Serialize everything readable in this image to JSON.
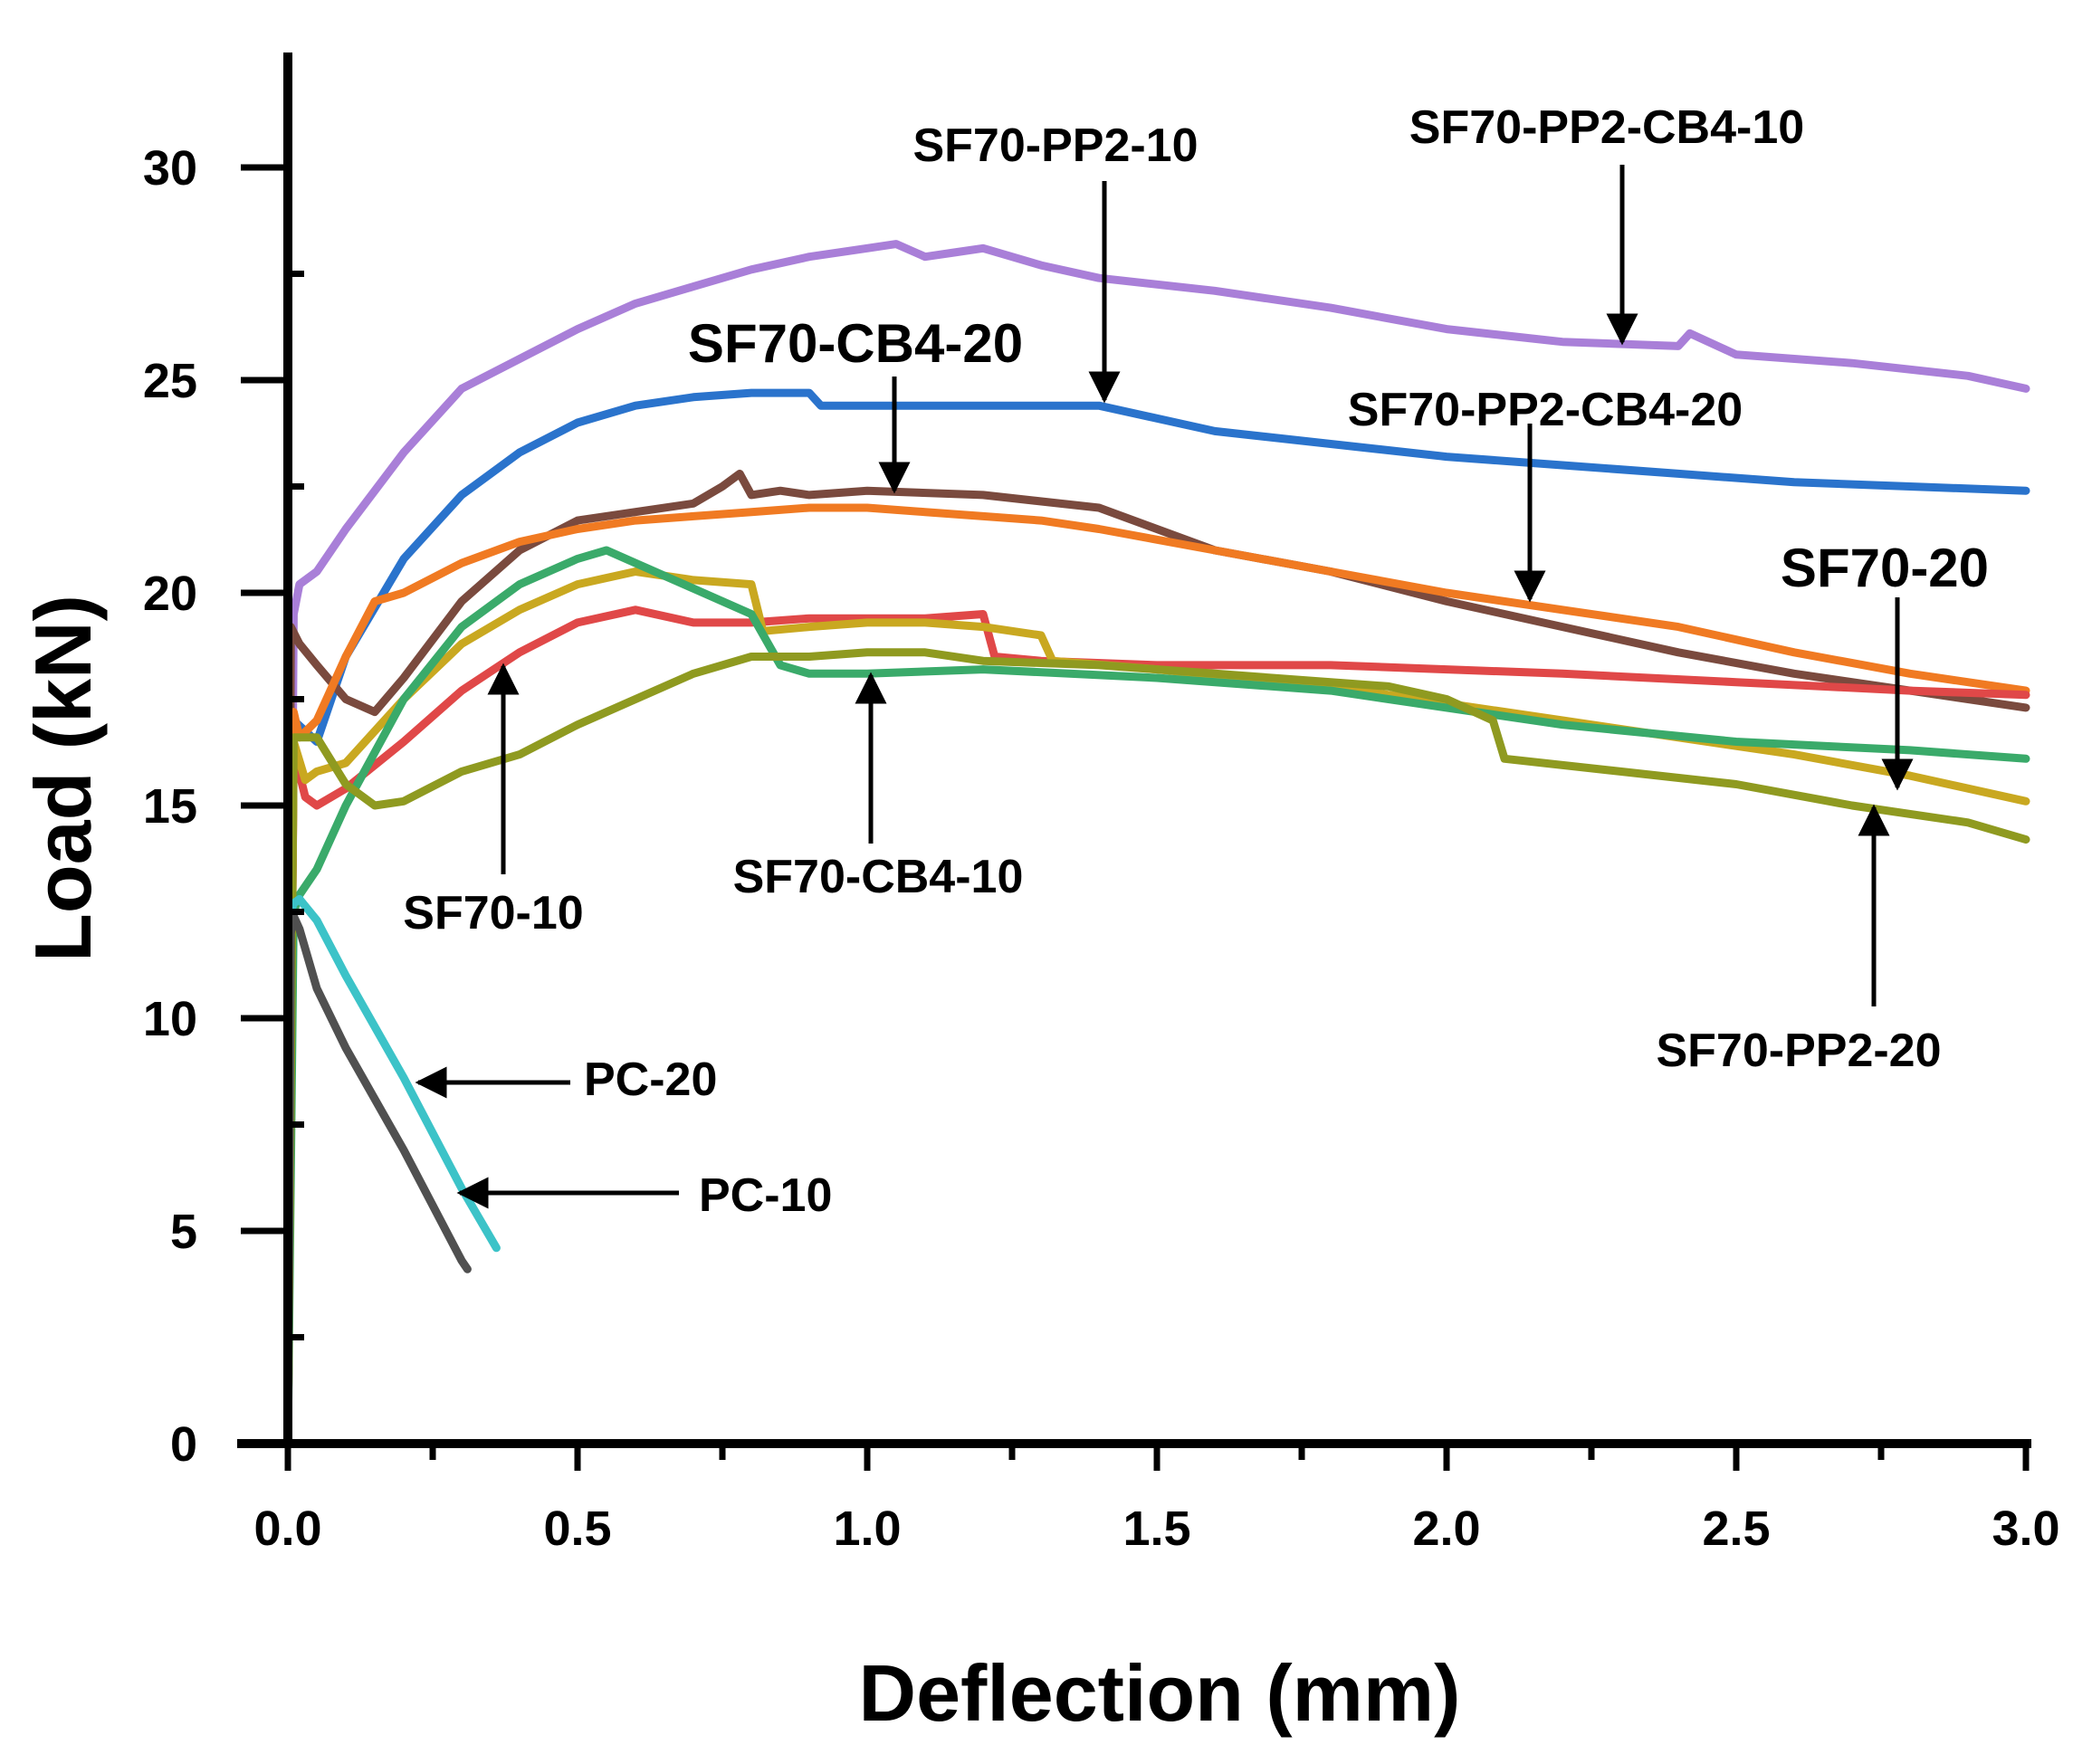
{
  "chart_data": {
    "type": "line",
    "title": "",
    "xlabel": "Deflection (mm)",
    "ylabel": "Load (kN)",
    "xlim": [
      0,
      3.0
    ],
    "ylim": [
      0,
      32
    ],
    "grid": false,
    "x_ticks": [
      "0.0",
      "0.5",
      "1.0",
      "1.5",
      "2.0",
      "2.5",
      "3.0"
    ],
    "y_ticks": [
      "0",
      "5",
      "10",
      "15",
      "20",
      "25",
      "30"
    ],
    "series": [
      {
        "name": "SF70-PP2-CB4-10",
        "color": "#a97fd8",
        "x": [
          0,
          0.01,
          0.02,
          0.05,
          0.1,
          0.2,
          0.3,
          0.4,
          0.5,
          0.6,
          0.7,
          0.8,
          0.9,
          1.0,
          1.05,
          1.1,
          1.15,
          1.2,
          1.3,
          1.4,
          1.6,
          1.8,
          2.0,
          2.2,
          2.4,
          2.42,
          2.5,
          2.7,
          2.9,
          3.0
        ],
        "y": [
          0,
          19.5,
          20.2,
          20.5,
          21.5,
          23.3,
          24.8,
          25.5,
          26.2,
          26.8,
          27.2,
          27.6,
          27.9,
          28.1,
          28.2,
          27.9,
          28.0,
          28.1,
          27.7,
          27.4,
          27.1,
          26.7,
          26.2,
          25.9,
          25.8,
          26.1,
          25.6,
          25.4,
          25.1,
          24.8
        ]
      },
      {
        "name": "SF70-PP2-10",
        "color": "#2a73cc",
        "x": [
          0,
          0.01,
          0.05,
          0.1,
          0.2,
          0.3,
          0.4,
          0.5,
          0.6,
          0.7,
          0.8,
          0.9,
          0.92,
          1.0,
          1.2,
          1.4,
          1.6,
          1.8,
          2.0,
          2.2,
          2.4,
          2.6,
          2.8,
          3.0
        ],
        "y": [
          0,
          17.0,
          16.5,
          18.5,
          20.8,
          22.3,
          23.3,
          24.0,
          24.4,
          24.6,
          24.7,
          24.7,
          24.4,
          24.4,
          24.4,
          24.4,
          23.8,
          23.5,
          23.2,
          23.0,
          22.8,
          22.6,
          22.5,
          22.4
        ]
      },
      {
        "name": "SF70-CB4-20",
        "color": "#7a4a3e",
        "x": [
          0,
          0.005,
          0.02,
          0.05,
          0.1,
          0.15,
          0.2,
          0.3,
          0.4,
          0.5,
          0.6,
          0.7,
          0.75,
          0.78,
          0.8,
          0.85,
          0.9,
          1.0,
          1.2,
          1.4,
          1.6,
          1.8,
          2.0,
          2.2,
          2.4,
          2.6,
          2.8,
          3.0
        ],
        "y": [
          0,
          19.2,
          18.8,
          18.3,
          17.5,
          17.2,
          18.0,
          19.8,
          21.0,
          21.7,
          21.9,
          22.1,
          22.5,
          22.8,
          22.3,
          22.4,
          22.3,
          22.4,
          22.3,
          22.0,
          21.0,
          20.5,
          19.8,
          19.2,
          18.6,
          18.1,
          17.7,
          17.3
        ]
      },
      {
        "name": "SF70-PP2-CB4-20",
        "color": "#f07a22",
        "x": [
          0,
          0.01,
          0.02,
          0.05,
          0.1,
          0.15,
          0.2,
          0.3,
          0.4,
          0.5,
          0.6,
          0.7,
          0.8,
          0.9,
          1.0,
          1.1,
          1.2,
          1.3,
          1.4,
          1.6,
          1.8,
          2.0,
          2.2,
          2.4,
          2.6,
          2.8,
          3.0
        ],
        "y": [
          0,
          17.2,
          16.6,
          17.0,
          18.5,
          19.8,
          20.0,
          20.7,
          21.2,
          21.5,
          21.7,
          21.8,
          21.9,
          22.0,
          22.0,
          21.9,
          21.8,
          21.7,
          21.5,
          21.0,
          20.5,
          20.0,
          19.6,
          19.2,
          18.6,
          18.1,
          17.7
        ]
      },
      {
        "name": "SF70-10",
        "color": "#e04848",
        "x": [
          0,
          0.01,
          0.03,
          0.05,
          0.1,
          0.2,
          0.3,
          0.4,
          0.5,
          0.6,
          0.7,
          0.8,
          0.9,
          1.0,
          1.1,
          1.2,
          1.22,
          1.3,
          1.5,
          1.8,
          2.0,
          2.2,
          2.5,
          2.8,
          3.0
        ],
        "y": [
          0,
          16.3,
          15.2,
          15.0,
          15.4,
          16.5,
          17.7,
          18.6,
          19.3,
          19.6,
          19.3,
          19.3,
          19.4,
          19.4,
          19.4,
          19.5,
          18.5,
          18.4,
          18.3,
          18.3,
          18.2,
          18.1,
          17.9,
          17.7,
          17.6
        ]
      },
      {
        "name": "SF70-20",
        "color": "#c9a820",
        "x": [
          0,
          0.01,
          0.03,
          0.05,
          0.1,
          0.2,
          0.3,
          0.4,
          0.5,
          0.6,
          0.7,
          0.8,
          0.82,
          0.9,
          1.0,
          1.1,
          1.2,
          1.3,
          1.32,
          1.5,
          1.8,
          2.0,
          2.2,
          2.4,
          2.6,
          2.8,
          3.0
        ],
        "y": [
          0,
          16.5,
          15.6,
          15.8,
          16.0,
          17.5,
          18.8,
          19.6,
          20.2,
          20.5,
          20.3,
          20.2,
          19.1,
          19.2,
          19.3,
          19.3,
          19.2,
          19.0,
          18.4,
          18.2,
          17.8,
          17.4,
          17.0,
          16.6,
          16.2,
          15.7,
          15.1
        ]
      },
      {
        "name": "SF70-CB4-10",
        "color": "#3aaa6a",
        "x": [
          0,
          0.01,
          0.02,
          0.05,
          0.1,
          0.2,
          0.3,
          0.4,
          0.5,
          0.55,
          0.6,
          0.7,
          0.8,
          0.85,
          0.9,
          1.0,
          1.2,
          1.5,
          1.8,
          2.0,
          2.2,
          2.5,
          2.8,
          3.0
        ],
        "y": [
          0,
          12.5,
          12.9,
          13.5,
          15.0,
          17.5,
          19.2,
          20.2,
          20.8,
          21.0,
          20.7,
          20.1,
          19.5,
          18.3,
          18.1,
          18.1,
          18.2,
          18.0,
          17.7,
          17.3,
          16.9,
          16.5,
          16.3,
          16.1
        ]
      },
      {
        "name": "SF70-PP2-20",
        "color": "#8f9a20",
        "x": [
          0,
          0.01,
          0.05,
          0.1,
          0.15,
          0.2,
          0.3,
          0.4,
          0.5,
          0.6,
          0.7,
          0.8,
          0.9,
          1.0,
          1.1,
          1.2,
          1.4,
          1.6,
          1.8,
          1.9,
          2.0,
          2.08,
          2.1,
          2.3,
          2.5,
          2.7,
          2.9,
          3.0
        ],
        "y": [
          0,
          16.6,
          16.6,
          15.5,
          15.0,
          15.1,
          15.8,
          16.2,
          16.9,
          17.5,
          18.1,
          18.5,
          18.5,
          18.6,
          18.6,
          18.4,
          18.3,
          18.1,
          17.9,
          17.8,
          17.5,
          17.0,
          16.1,
          15.8,
          15.5,
          15.0,
          14.6,
          14.2
        ]
      },
      {
        "name": "PC-20",
        "color": "#3cc3c8",
        "x": [
          0,
          0.005,
          0.01,
          0.02,
          0.05,
          0.1,
          0.2,
          0.3,
          0.36
        ],
        "y": [
          0,
          12.5,
          12.7,
          12.8,
          12.3,
          11.0,
          8.6,
          6.0,
          4.6
        ]
      },
      {
        "name": "PC-10",
        "color": "#505050",
        "x": [
          0,
          0.005,
          0.01,
          0.02,
          0.05,
          0.1,
          0.2,
          0.3,
          0.31
        ],
        "y": [
          0,
          12.0,
          12.4,
          12.1,
          10.7,
          9.3,
          6.9,
          4.3,
          4.1
        ]
      }
    ],
    "annotations": [
      {
        "text": "SF70-PP2-CB4-10",
        "series": "SF70-PP2-CB4-10"
      },
      {
        "text": "SF70-PP2-10",
        "series": "SF70-PP2-10"
      },
      {
        "text": "SF70-CB4-20",
        "series": "SF70-CB4-20"
      },
      {
        "text": "SF70-PP2-CB4-20",
        "series": "SF70-PP2-CB4-20"
      },
      {
        "text": "SF70-20",
        "series": "SF70-20"
      },
      {
        "text": "SF70-10",
        "series": "SF70-10"
      },
      {
        "text": "SF70-CB4-10",
        "series": "SF70-CB4-10"
      },
      {
        "text": "SF70-PP2-20",
        "series": "SF70-PP2-20"
      },
      {
        "text": "PC-20",
        "series": "PC-20"
      },
      {
        "text": "PC-10",
        "series": "PC-10"
      }
    ]
  }
}
